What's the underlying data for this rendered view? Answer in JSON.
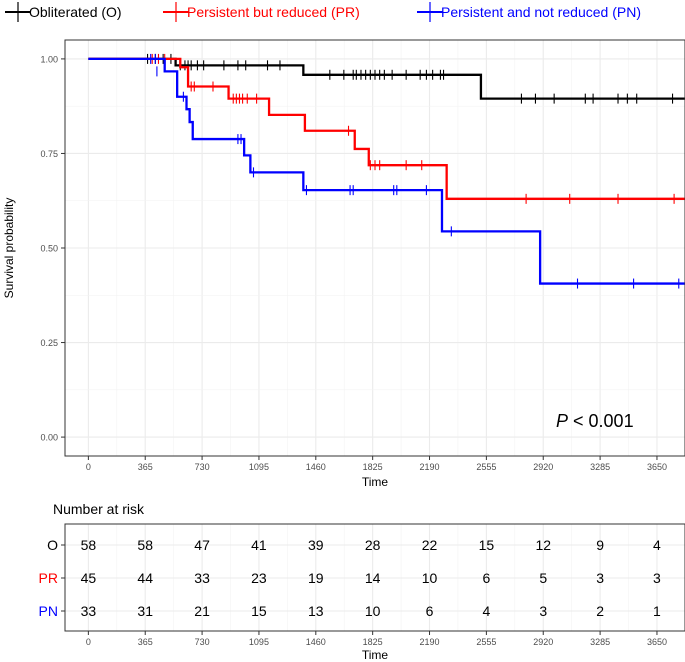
{
  "chart_data": [
    {
      "type": "line",
      "subtype": "kaplan-meier",
      "title": "",
      "xlabel": "Time",
      "ylabel": "Survival probability",
      "xlim": [
        -150,
        3830
      ],
      "ylim": [
        -0.05,
        1.05
      ],
      "xticks": [
        0,
        365,
        730,
        1095,
        1460,
        1825,
        2190,
        2555,
        2920,
        3285,
        3650
      ],
      "yticks": [
        0.0,
        0.25,
        0.5,
        0.75,
        1.0
      ],
      "ytick_labels": [
        "0.00",
        "0.25",
        "0.50",
        "0.75",
        "1.00"
      ],
      "grid": true,
      "legend_position": "top",
      "annotation": {
        "italic": "P",
        "rest": " < 0.001"
      },
      "series": [
        {
          "name": "Obliterated (O)",
          "color": "#000000",
          "steps": [
            [
              0,
              1.0
            ],
            [
              560,
              0.983
            ],
            [
              1380,
              0.958
            ],
            [
              2520,
              0.895
            ],
            [
              3830,
              0.895
            ]
          ],
          "censored": [
            [
              380,
              1.0
            ],
            [
              430,
              1.0
            ],
            [
              480,
              1.0
            ],
            [
              530,
              1.0
            ],
            [
              590,
              0.983
            ],
            [
              620,
              0.983
            ],
            [
              640,
              0.983
            ],
            [
              660,
              0.983
            ],
            [
              700,
              0.983
            ],
            [
              740,
              0.983
            ],
            [
              870,
              0.983
            ],
            [
              960,
              0.983
            ],
            [
              1010,
              0.983
            ],
            [
              1150,
              0.983
            ],
            [
              1230,
              0.983
            ],
            [
              1550,
              0.958
            ],
            [
              1640,
              0.958
            ],
            [
              1700,
              0.958
            ],
            [
              1720,
              0.958
            ],
            [
              1750,
              0.958
            ],
            [
              1780,
              0.958
            ],
            [
              1810,
              0.958
            ],
            [
              1840,
              0.958
            ],
            [
              1870,
              0.958
            ],
            [
              1900,
              0.958
            ],
            [
              1950,
              0.958
            ],
            [
              2040,
              0.958
            ],
            [
              2130,
              0.958
            ],
            [
              2170,
              0.958
            ],
            [
              2210,
              0.958
            ],
            [
              2260,
              0.958
            ],
            [
              2280,
              0.958
            ],
            [
              2780,
              0.895
            ],
            [
              2870,
              0.895
            ],
            [
              2990,
              0.895
            ],
            [
              3190,
              0.895
            ],
            [
              3240,
              0.895
            ],
            [
              3400,
              0.895
            ],
            [
              3460,
              0.895
            ],
            [
              3520,
              0.895
            ],
            [
              3750,
              0.895
            ]
          ]
        },
        {
          "name": "Persistent but reduced (PR)",
          "color": "#ff0000",
          "steps": [
            [
              0,
              1.0
            ],
            [
              590,
              0.978
            ],
            [
              640,
              0.927
            ],
            [
              900,
              0.895
            ],
            [
              1160,
              0.852
            ],
            [
              1390,
              0.81
            ],
            [
              1710,
              0.762
            ],
            [
              1800,
              0.719
            ],
            [
              2300,
              0.63
            ],
            [
              3830,
              0.63
            ]
          ],
          "censored": [
            [
              410,
              1.0
            ],
            [
              450,
              1.0
            ],
            [
              490,
              1.0
            ],
            [
              660,
              0.927
            ],
            [
              680,
              0.927
            ],
            [
              800,
              0.927
            ],
            [
              930,
              0.895
            ],
            [
              950,
              0.895
            ],
            [
              970,
              0.895
            ],
            [
              990,
              0.895
            ],
            [
              1020,
              0.895
            ],
            [
              1080,
              0.895
            ],
            [
              1670,
              0.81
            ],
            [
              1810,
              0.719
            ],
            [
              1840,
              0.719
            ],
            [
              1870,
              0.719
            ],
            [
              2040,
              0.719
            ],
            [
              2140,
              0.719
            ],
            [
              2810,
              0.63
            ],
            [
              3090,
              0.63
            ],
            [
              3400,
              0.63
            ],
            [
              3760,
              0.63
            ]
          ]
        },
        {
          "name": "Persistent and not reduced (PN)",
          "color": "#0000ff",
          "steps": [
            [
              0,
              1.0
            ],
            [
              490,
              0.967
            ],
            [
              570,
              0.9
            ],
            [
              630,
              0.867
            ],
            [
              650,
              0.833
            ],
            [
              670,
              0.788
            ],
            [
              1000,
              0.745
            ],
            [
              1040,
              0.7
            ],
            [
              1380,
              0.653
            ],
            [
              2270,
              0.544
            ],
            [
              2900,
              0.406
            ],
            [
              3830,
              0.406
            ]
          ],
          "censored": [
            [
              400,
              1.0
            ],
            [
              430,
              1.0
            ],
            [
              440,
              0.967
            ],
            [
              610,
              0.9
            ],
            [
              960,
              0.788
            ],
            [
              980,
              0.788
            ],
            [
              1060,
              0.7
            ],
            [
              1400,
              0.653
            ],
            [
              1680,
              0.653
            ],
            [
              1700,
              0.653
            ],
            [
              1960,
              0.653
            ],
            [
              1980,
              0.653
            ],
            [
              2170,
              0.653
            ],
            [
              2330,
              0.544
            ],
            [
              3140,
              0.406
            ],
            [
              3500,
              0.406
            ],
            [
              3790,
              0.406
            ]
          ]
        }
      ]
    },
    {
      "type": "table",
      "title": "Number at risk",
      "xlabel": "Time",
      "columns": [
        "0",
        "365",
        "730",
        "1095",
        "1460",
        "1825",
        "2190",
        "2555",
        "2920",
        "3285",
        "3650"
      ],
      "rows": [
        {
          "label": "O",
          "color": "#000000",
          "values": [
            "58",
            "58",
            "47",
            "41",
            "39",
            "28",
            "22",
            "15",
            "12",
            "9",
            "4"
          ]
        },
        {
          "label": "PR",
          "color": "#ff0000",
          "values": [
            "45",
            "44",
            "33",
            "23",
            "19",
            "14",
            "10",
            "6",
            "5",
            "3",
            "3"
          ]
        },
        {
          "label": "PN",
          "color": "#0000ff",
          "values": [
            "33",
            "31",
            "21",
            "15",
            "13",
            "10",
            "6",
            "4",
            "3",
            "2",
            "1"
          ]
        }
      ]
    }
  ]
}
